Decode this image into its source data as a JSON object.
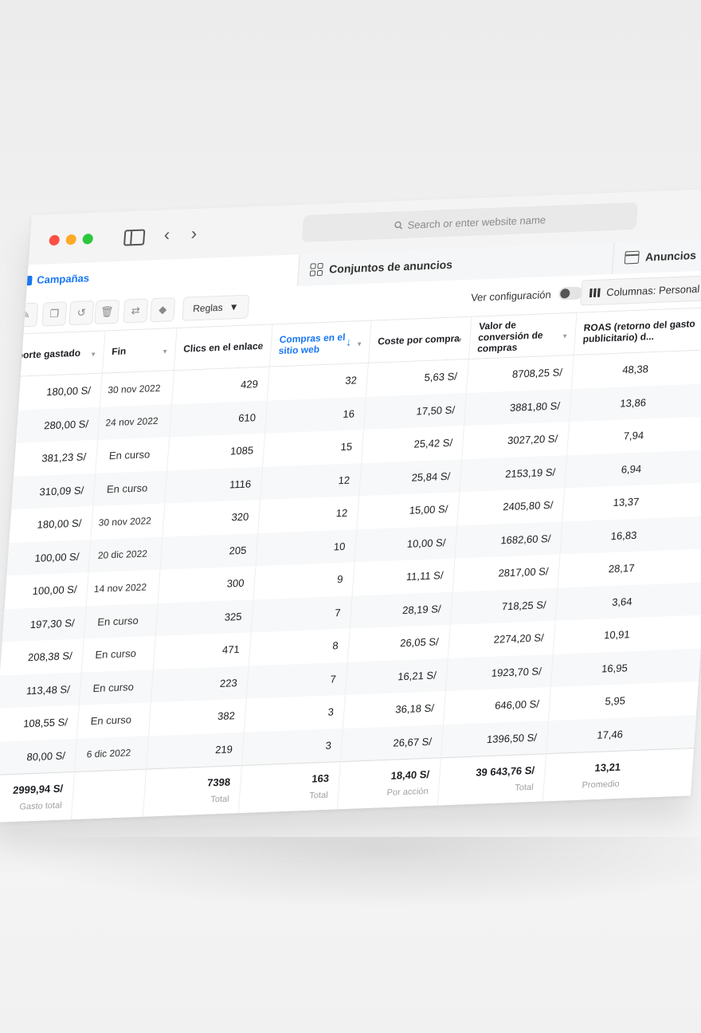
{
  "browser": {
    "search_placeholder": "Search or enter website name"
  },
  "tabs": {
    "campanas": "Campañas",
    "conjuntos": "Conjuntos de anuncios",
    "anuncios": "Anuncios"
  },
  "toolbar": {
    "rules_label": "Reglas",
    "ver_configuracion": "Ver configuración",
    "columns_label": "Columnas: Personal"
  },
  "table": {
    "headers": {
      "importe": "Importe gastado",
      "fin": "Fin",
      "clics": "Clics en el enlace",
      "compras": "Compras en el sitio web",
      "coste": "Coste por compra",
      "valor": "Valor de conversión de compras",
      "roas": "ROAS (retorno del gasto publicitario) d..."
    },
    "rows": [
      {
        "importe": "180,00 S/",
        "fin": "30 nov 2022",
        "clics": "429",
        "compras": "32",
        "coste": "5,63 S/",
        "valor": "8708,25 S/",
        "roas": "48,38"
      },
      {
        "importe": "280,00 S/",
        "fin": "24 nov 2022",
        "clics": "610",
        "compras": "16",
        "coste": "17,50 S/",
        "valor": "3881,80 S/",
        "roas": "13,86"
      },
      {
        "importe": "381,23 S/",
        "fin": "En curso",
        "clics": "1085",
        "compras": "15",
        "coste": "25,42 S/",
        "valor": "3027,20 S/",
        "roas": "7,94"
      },
      {
        "importe": "310,09 S/",
        "fin": "En curso",
        "clics": "1116",
        "compras": "12",
        "coste": "25,84 S/",
        "valor": "2153,19 S/",
        "roas": "6,94"
      },
      {
        "importe": "180,00 S/",
        "fin": "30 nov 2022",
        "clics": "320",
        "compras": "12",
        "coste": "15,00 S/",
        "valor": "2405,80 S/",
        "roas": "13,37"
      },
      {
        "importe": "100,00 S/",
        "fin": "20 dic 2022",
        "clics": "205",
        "compras": "10",
        "coste": "10,00 S/",
        "valor": "1682,60 S/",
        "roas": "16,83"
      },
      {
        "importe": "100,00 S/",
        "fin": "14 nov 2022",
        "clics": "300",
        "compras": "9",
        "coste": "11,11 S/",
        "valor": "2817,00 S/",
        "roas": "28,17"
      },
      {
        "importe": "197,30 S/",
        "fin": "En curso",
        "clics": "325",
        "compras": "7",
        "coste": "28,19 S/",
        "valor": "718,25 S/",
        "roas": "3,64"
      },
      {
        "importe": "208,38 S/",
        "fin": "En curso",
        "clics": "471",
        "compras": "8",
        "coste": "26,05 S/",
        "valor": "2274,20 S/",
        "roas": "10,91"
      },
      {
        "importe": "113,48 S/",
        "fin": "En curso",
        "clics": "223",
        "compras": "7",
        "coste": "16,21 S/",
        "valor": "1923,70 S/",
        "roas": "16,95"
      },
      {
        "importe": "108,55 S/",
        "fin": "En curso",
        "clics": "382",
        "compras": "3",
        "coste": "36,18 S/",
        "valor": "646,00 S/",
        "roas": "5,95"
      },
      {
        "importe": "80,00 S/",
        "fin": "6 dic 2022",
        "clics": "219",
        "compras": "3",
        "coste": "26,67 S/",
        "valor": "1396,50 S/",
        "roas": "17,46"
      }
    ],
    "totals": {
      "importe": {
        "value": "2999,94 S/",
        "label": "Gasto total"
      },
      "clics": {
        "value": "7398",
        "label": "Total"
      },
      "compras": {
        "value": "163",
        "label": "Total"
      },
      "coste": {
        "value": "18,40 S/",
        "label": "Por acción"
      },
      "valor": {
        "value": "39 643,76 S/",
        "label": "Total"
      },
      "roas": {
        "value": "13,21",
        "label": "Promedio"
      }
    }
  },
  "colors": {
    "accent": "#1877f2",
    "close": "#fe4f45",
    "minimize": "#feaa27",
    "maximize": "#2bc73d"
  }
}
